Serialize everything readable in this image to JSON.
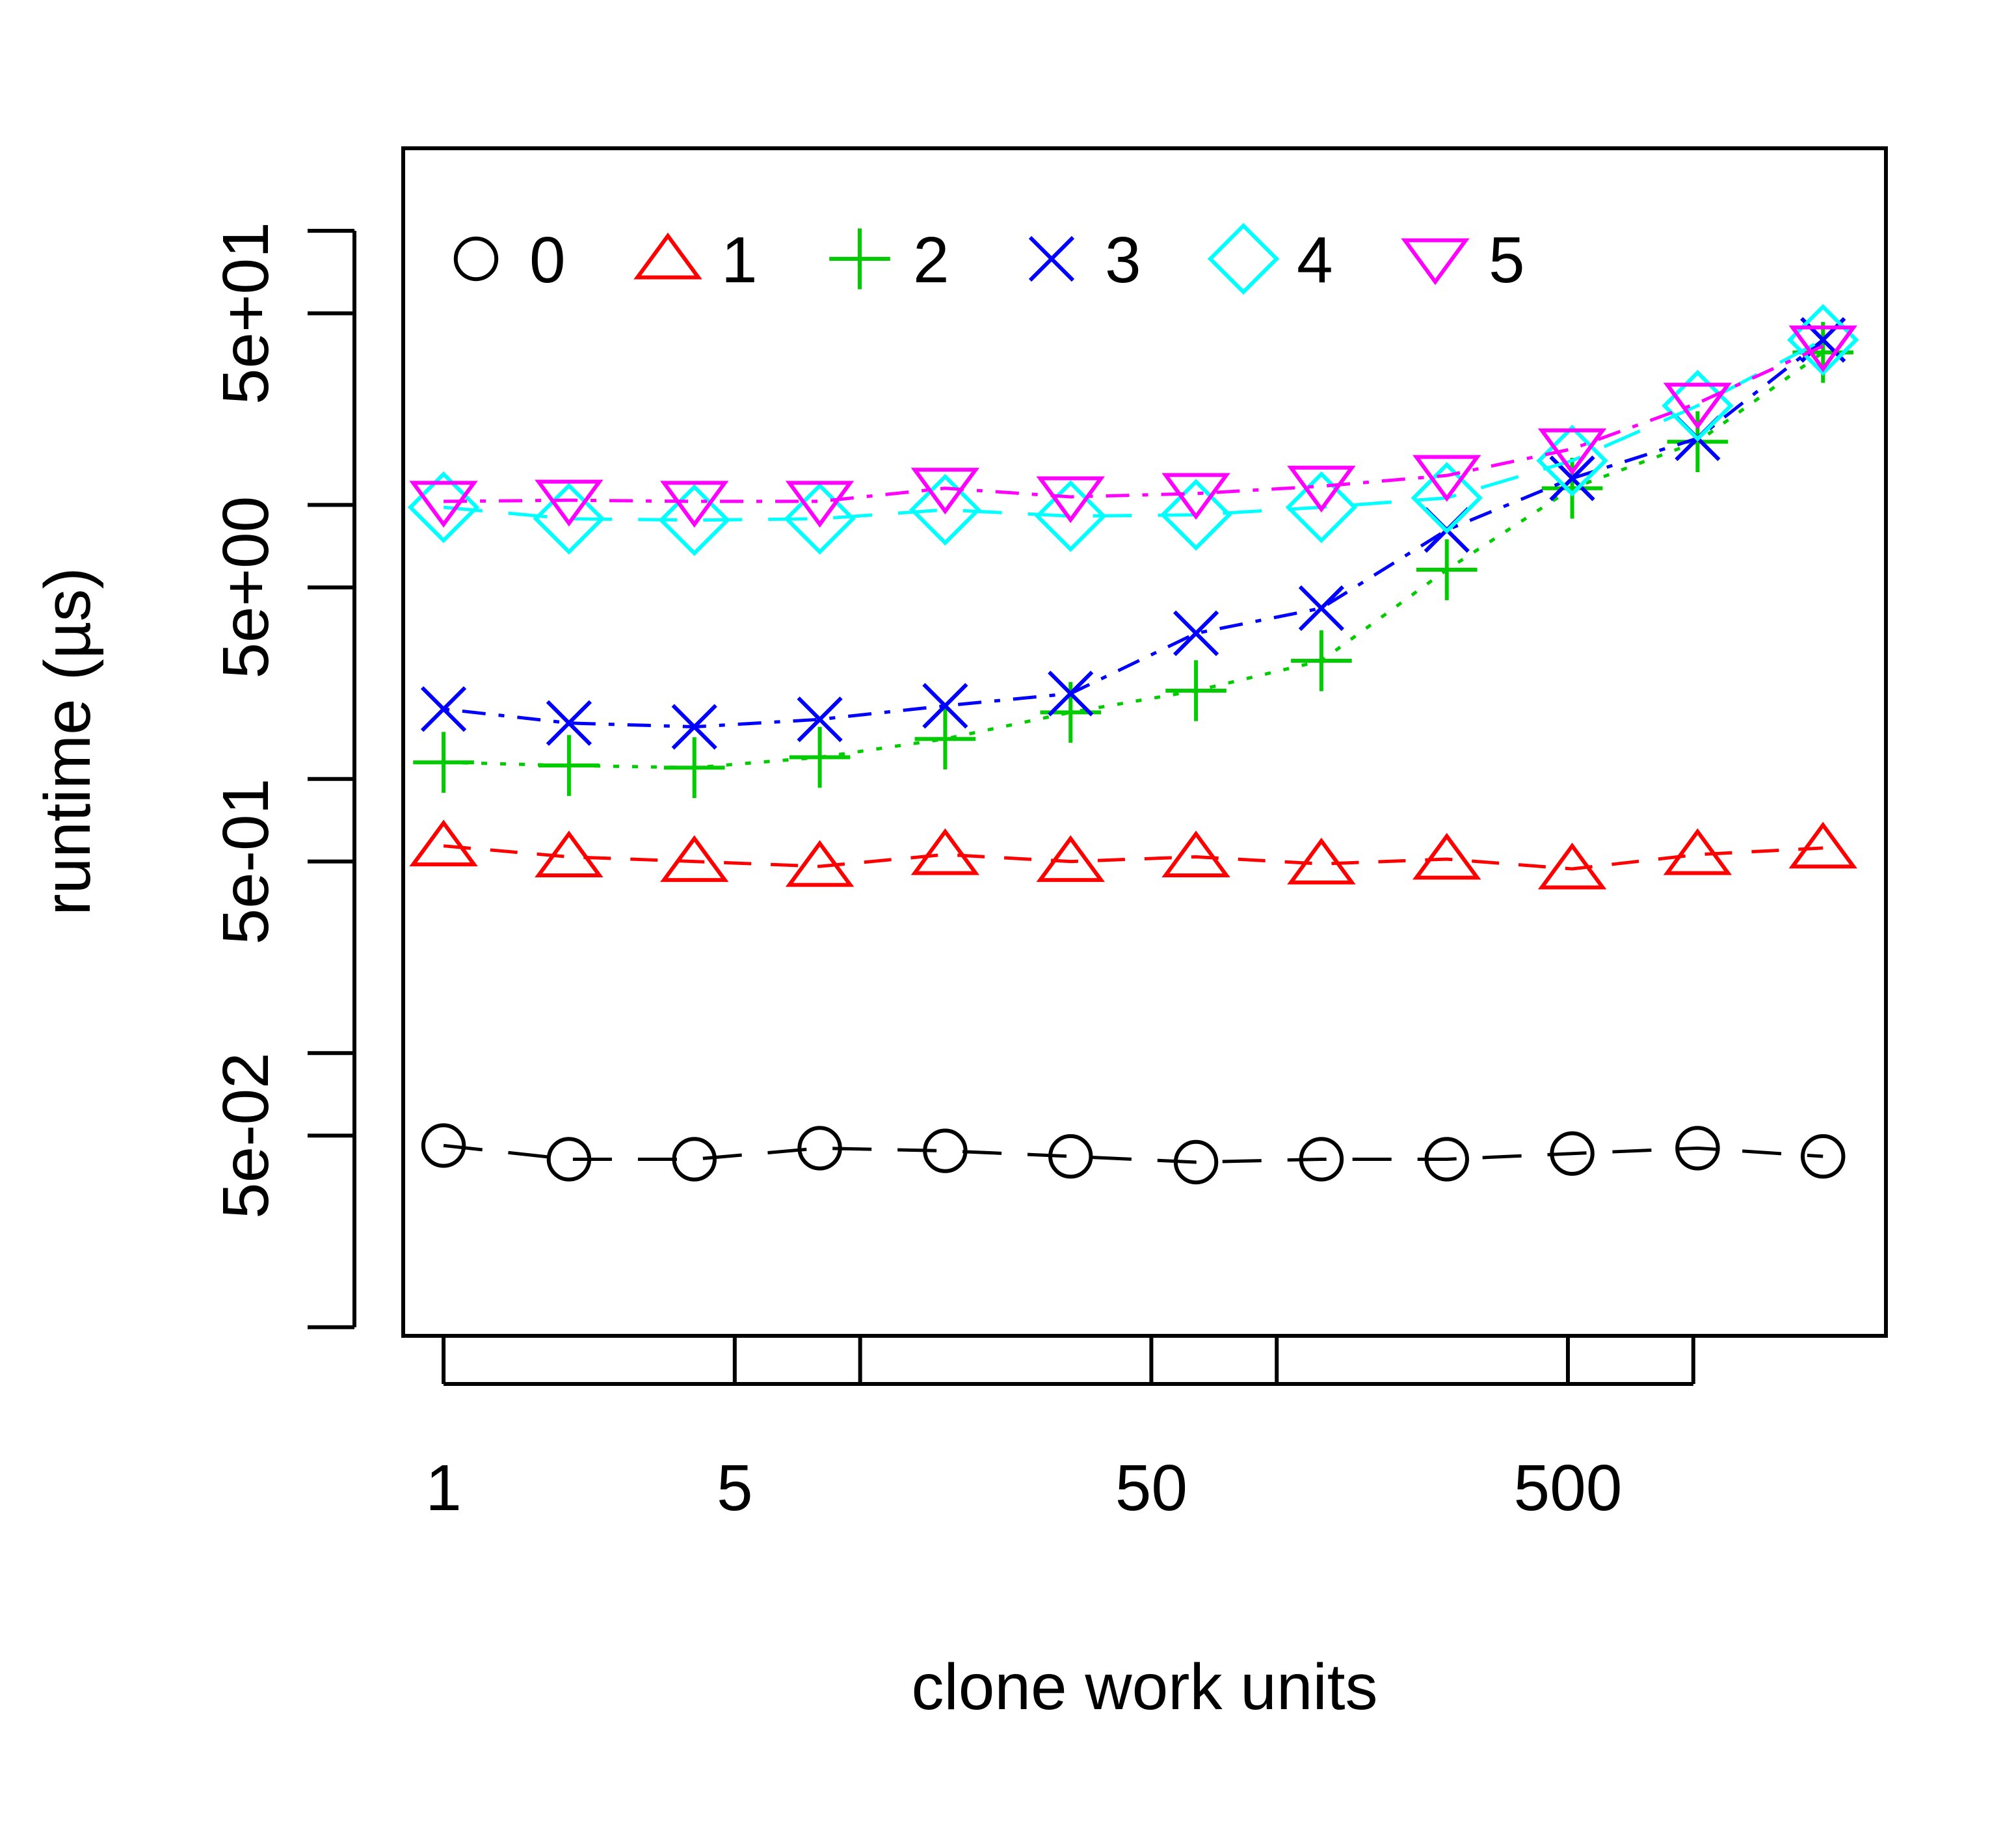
{
  "chart_data": {
    "type": "line",
    "xlabel": "clone work units",
    "ylabel": "runtime (µs)",
    "x_scale": "log2",
    "y_scale": "log10",
    "x": [
      1,
      2,
      4,
      8,
      16,
      32,
      64,
      128,
      256,
      512,
      1024,
      2048
    ],
    "x_ticks": [
      {
        "value": 1,
        "label": "1"
      },
      {
        "value": 5,
        "label": "5"
      },
      {
        "value": 10,
        "label": ""
      },
      {
        "value": 50,
        "label": "50"
      },
      {
        "value": 100,
        "label": ""
      },
      {
        "value": 500,
        "label": "500"
      },
      {
        "value": 1000,
        "label": ""
      }
    ],
    "y_ticks": [
      {
        "value": 0.01,
        "label": ""
      },
      {
        "value": 0.05,
        "label": "5e-02"
      },
      {
        "value": 0.1,
        "label": ""
      },
      {
        "value": 0.5,
        "label": "5e-01"
      },
      {
        "value": 1,
        "label": ""
      },
      {
        "value": 5,
        "label": "5e+00"
      },
      {
        "value": 10,
        "label": ""
      },
      {
        "value": 50,
        "label": "5e+01"
      },
      {
        "value": 100,
        "label": ""
      }
    ],
    "xlim": [
      0.8,
      2900
    ],
    "ylim": [
      0.0093,
      200
    ],
    "legend_position": "top-left, horizontal, inside plot",
    "grid": false,
    "series": [
      {
        "name": "0",
        "color": "#000000",
        "marker": "circle",
        "dash": "long-dash",
        "values": [
          0.046,
          0.041,
          0.041,
          0.045,
          0.044,
          0.042,
          0.04,
          0.041,
          0.041,
          0.043,
          0.045,
          0.042
        ]
      },
      {
        "name": "1",
        "color": "#ff0000",
        "marker": "triangle-up",
        "dash": "dash",
        "values": [
          0.57,
          0.52,
          0.5,
          0.48,
          0.53,
          0.5,
          0.52,
          0.49,
          0.51,
          0.47,
          0.53,
          0.56
        ]
      },
      {
        "name": "2",
        "color": "#00cc00",
        "marker": "plus",
        "dash": "dot",
        "values": [
          1.15,
          1.12,
          1.1,
          1.2,
          1.4,
          1.75,
          2.1,
          2.7,
          5.8,
          11.5,
          17.0,
          36.0
        ]
      },
      {
        "name": "3",
        "color": "#0000ff",
        "marker": "cross",
        "dash": "dash-dot",
        "values": [
          1.8,
          1.6,
          1.55,
          1.65,
          1.85,
          2.05,
          3.4,
          4.2,
          8.1,
          12.5,
          17.5,
          40.0
        ]
      },
      {
        "name": "4",
        "color": "#00ffff",
        "marker": "diamond",
        "dash": "long-dash",
        "values": [
          9.8,
          8.9,
          8.8,
          8.9,
          9.6,
          9.1,
          9.2,
          9.8,
          10.6,
          14.5,
          23.0,
          40.0
        ]
      },
      {
        "name": "5",
        "color": "#ff00ff",
        "marker": "triangle-down",
        "dash": "dot-dash",
        "values": [
          10.3,
          10.4,
          10.3,
          10.3,
          11.5,
          10.7,
          11.0,
          11.7,
          12.8,
          16.0,
          23.5,
          38.0
        ]
      }
    ]
  }
}
